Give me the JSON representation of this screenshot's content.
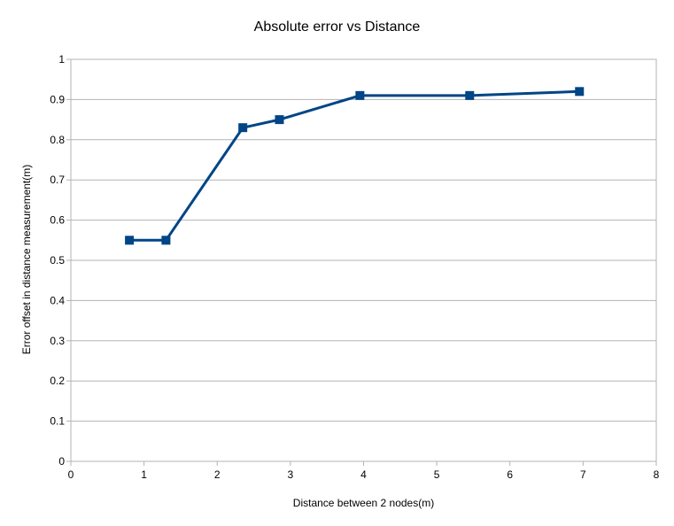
{
  "chart_data": {
    "type": "line",
    "title": "Absolute error vs Distance",
    "xlabel": "Distance between 2 nodes(m)",
    "ylabel": "Error offset in distance measurement(m)",
    "xlim": [
      0,
      8
    ],
    "ylim": [
      0,
      1
    ],
    "x_ticks": [
      "0",
      "1",
      "2",
      "3",
      "4",
      "5",
      "6",
      "7",
      "8"
    ],
    "y_ticks": [
      "0",
      "0.1",
      "0.2",
      "0.3",
      "0.4",
      "0.5",
      "0.6",
      "0.7",
      "0.8",
      "0.9",
      "1"
    ],
    "grid": "horizontal",
    "legend": "none",
    "series": [
      {
        "color": "#004586",
        "marker": "square",
        "x": [
          0.8,
          1.3,
          2.35,
          2.85,
          3.95,
          5.45,
          6.95
        ],
        "y": [
          0.55,
          0.55,
          0.83,
          0.85,
          0.91,
          0.91,
          0.92
        ]
      }
    ]
  }
}
